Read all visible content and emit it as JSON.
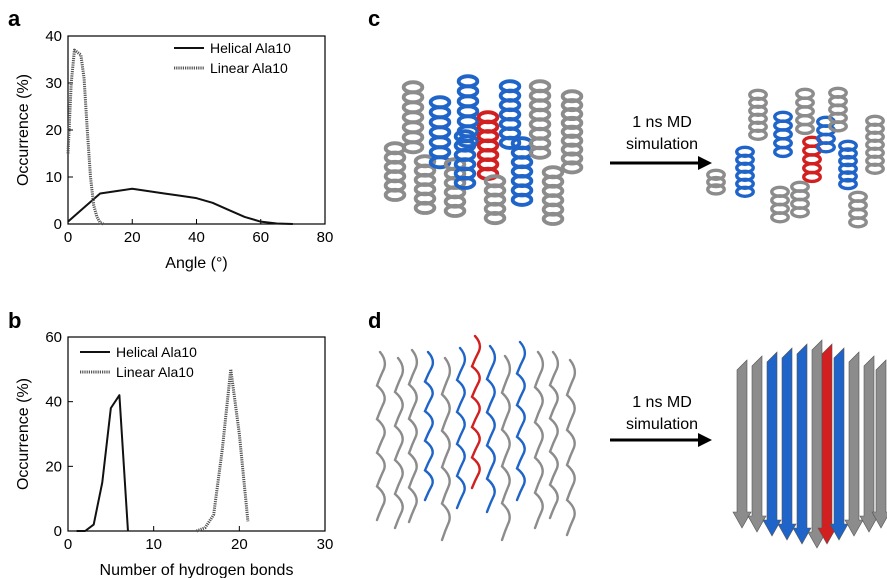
{
  "panels": {
    "a": "a",
    "b": "b",
    "c": "c",
    "d": "d"
  },
  "arrows": {
    "c": {
      "line1": "1 ns MD",
      "line2": "simulation"
    },
    "d": {
      "line1": "1 ns MD",
      "line2": "simulation"
    }
  },
  "colors": {
    "helix_gray": "#8c8c8c",
    "highlight_blue": "#1f64c8",
    "highlight_red": "#d21f1f"
  },
  "chart_data": [
    {
      "type": "line",
      "id": "a",
      "xlabel": "Angle (°)",
      "ylabel": "Occurrence (%)",
      "xlim": [
        0,
        80
      ],
      "ylim": [
        0,
        40
      ],
      "xticks": [
        "0",
        "20",
        "40",
        "60",
        "80"
      ],
      "yticks": [
        "0",
        "10",
        "20",
        "30",
        "40"
      ],
      "legend_position": "top-right",
      "series": [
        {
          "name": "Helical Ala10",
          "style": "solid",
          "x": [
            0,
            5,
            10,
            15,
            20,
            25,
            30,
            35,
            40,
            45,
            50,
            55,
            60,
            65,
            70
          ],
          "y": [
            0.5,
            3.5,
            6.5,
            7,
            7.5,
            7,
            6.5,
            6,
            5.5,
            4.5,
            3,
            1.5,
            0.5,
            0.1,
            0
          ]
        },
        {
          "name": "Linear Ala10",
          "style": "dotted",
          "x": [
            0,
            1,
            2,
            3,
            4,
            5,
            6,
            7,
            8,
            9,
            10,
            11
          ],
          "y": [
            15,
            30,
            37,
            36.5,
            36,
            31,
            20,
            10,
            4,
            1.5,
            0.3,
            0
          ]
        }
      ]
    },
    {
      "type": "line",
      "id": "b",
      "xlabel": "Number of hydrogen bonds",
      "ylabel": "Occurrence (%)",
      "xlim": [
        0,
        30
      ],
      "ylim": [
        0,
        60
      ],
      "xticks": [
        "0",
        "10",
        "20",
        "30"
      ],
      "yticks": [
        "0",
        "20",
        "40",
        "60"
      ],
      "legend_position": "top-left",
      "series": [
        {
          "name": "Helical Ala10",
          "style": "solid",
          "x": [
            1,
            2,
            3,
            4,
            5,
            6,
            7
          ],
          "y": [
            0,
            0,
            2,
            15,
            38,
            42,
            0
          ]
        },
        {
          "name": "Linear Ala10",
          "style": "dotted",
          "x": [
            15,
            16,
            17,
            18,
            19,
            20,
            21
          ],
          "y": [
            0,
            1,
            5,
            25,
            50,
            30,
            3
          ]
        }
      ]
    }
  ]
}
